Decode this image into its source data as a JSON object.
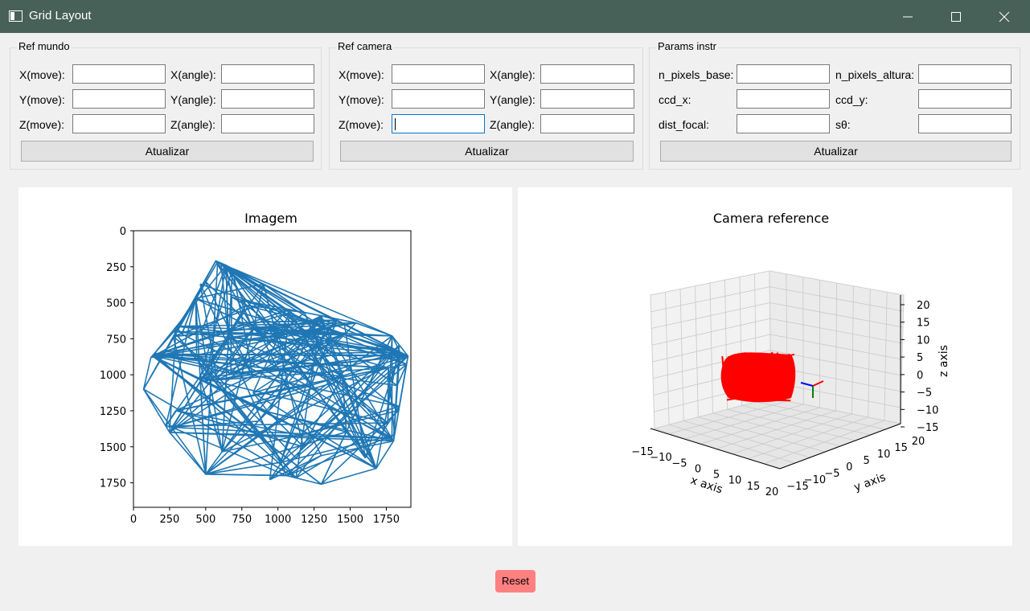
{
  "window": {
    "title": "Grid Layout"
  },
  "groups": [
    {
      "title": "Ref mundo",
      "labels": [
        "X(move):",
        "X(angle):",
        "Y(move):",
        "Y(angle):",
        "Z(move):",
        "Z(angle):"
      ],
      "button": "Atualizar"
    },
    {
      "title": "Ref camera",
      "labels": [
        "X(move):",
        "X(angle):",
        "Y(move):",
        "Y(angle):",
        "Z(move):",
        "Z(angle):"
      ],
      "button": "Atualizar"
    },
    {
      "title": "Params instr",
      "labels": [
        "n_pixels_base:",
        "n_pixels_altura:",
        "ccd_x:",
        "ccd_y:",
        "dist_focal:",
        "sθ:"
      ],
      "button": "Atualizar"
    }
  ],
  "chart_data": [
    {
      "type": "line",
      "title": "Imagem",
      "x_ticks": [
        "0",
        "250",
        "500",
        "750",
        "1000",
        "1250",
        "1500",
        "1750"
      ],
      "y_ticks": [
        "0",
        "250",
        "500",
        "750",
        "1000",
        "1250",
        "1500",
        "1750"
      ],
      "xlim": [
        0,
        1920
      ],
      "ylim": [
        1920,
        0
      ],
      "y_inverted": true,
      "color": "#1f77b4",
      "outline_points": [
        [
          430,
          470
        ],
        [
          570,
          210
        ],
        [
          640,
          240
        ],
        [
          680,
          460
        ],
        [
          740,
          480
        ],
        [
          1300,
          590
        ],
        [
          1540,
          640
        ],
        [
          1790,
          730
        ],
        [
          1900,
          870
        ],
        [
          1840,
          1220
        ],
        [
          1800,
          1460
        ],
        [
          1680,
          1650
        ],
        [
          1300,
          1760
        ],
        [
          1060,
          1700
        ],
        [
          500,
          1690
        ],
        [
          250,
          1400
        ],
        [
          70,
          1100
        ],
        [
          120,
          880
        ],
        [
          280,
          700
        ]
      ]
    },
    {
      "type": "scatter",
      "title": "Camera reference",
      "xlabel": "x axis",
      "ylabel": "y axis",
      "zlabel": "z axis",
      "x_ticks": [
        "−15",
        "−10",
        "−5",
        "0",
        "5",
        "10",
        "15",
        "20"
      ],
      "y_ticks": [
        "−15",
        "−10",
        "−5",
        "0",
        "5",
        "10",
        "15",
        "20"
      ],
      "z_ticks": [
        "20",
        "15",
        "10",
        "5",
        "0",
        "−5",
        "−10",
        "−15"
      ],
      "xlim": [
        -15,
        20
      ],
      "ylim": [
        -15,
        20
      ],
      "zlim": [
        -15,
        20
      ],
      "grid": true,
      "object_color": "#ff0000",
      "axes_colors": [
        "#ff0000",
        "#008000",
        "#0000ff"
      ]
    }
  ],
  "reset_button": {
    "label": "Reset",
    "color": "#ff8080"
  }
}
